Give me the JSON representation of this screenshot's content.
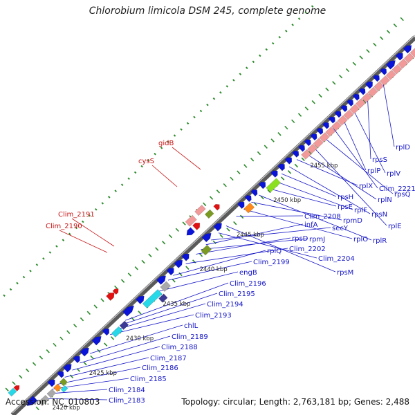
{
  "title": "Chlorobium limicola DSM 245, complete genome",
  "footer": {
    "accession": "Accession: NC_010803",
    "topology": "Topology: circular; Length: 2,763,181 bp; Genes: 2,488"
  },
  "colors": {
    "gene_blue": "#0a14d8",
    "rrna_pink": "#f29a9a",
    "cyan": "#26d8e8",
    "olive": "#7a9a22",
    "orange": "#ff8a1a",
    "green": "#8be020",
    "slate": "#3a3a96",
    "gray": "#a9a9a9",
    "red_arrow": "#e21010",
    "label_blue": "#1414c8",
    "label_red": "#c81414",
    "tick_green": "#2a8a2a"
  },
  "kbp_labels": [
    "2420 kbp",
    "2425 kbp",
    "2430 kbp",
    "2435 kbp",
    "2440 kbp",
    "2445 kbp",
    "2450 kbp",
    "2455 kbp"
  ],
  "labels_blue": [
    "Clim_2183",
    "Clim_2184",
    "Clim_2185",
    "Clim_2186",
    "Clim_2187",
    "Clim_2188",
    "Clim_2189",
    "chlL",
    "Clim_2193",
    "Clim_2194",
    "Clim_2195",
    "Clim_2196",
    "engB",
    "Clim_2199",
    "rplQ",
    "Clim_2202",
    "rpsD",
    "rpmJ",
    "infA",
    "secY",
    "Clim_2204",
    "rpsM",
    "Clim_2208",
    "rplO",
    "rpmD",
    "rplR",
    "rpsE",
    "rplF",
    "rpsH",
    "rpsN",
    "rplX",
    "rplN",
    "rplE",
    "rpsQ",
    "Clim_2221",
    "rplP",
    "rplV",
    "rpsS",
    "rplD"
  ],
  "labels_red": [
    "gidB",
    "cysS",
    "Clim_2191",
    "Clim_2190"
  ]
}
